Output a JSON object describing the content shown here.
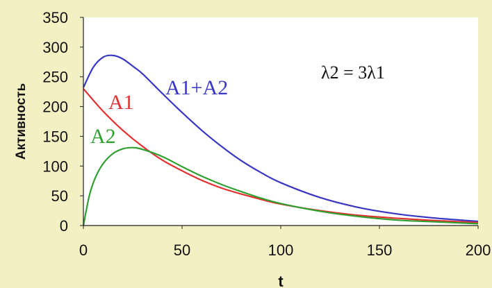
{
  "chart_data": {
    "type": "line",
    "xlabel": "t",
    "ylabel": "Активность",
    "xlim": [
      0,
      200
    ],
    "ylim": [
      0,
      350
    ],
    "x_ticks": [
      "0",
      "50",
      "100",
      "150",
      "200"
    ],
    "y_ticks": [
      "0",
      "50",
      "100",
      "150",
      "200",
      "250",
      "300",
      "350"
    ],
    "annotation": "λ2 = 3λ1",
    "grid": false,
    "series": [
      {
        "name": "A1+A2",
        "color": "#3a36c4",
        "x": [
          0,
          5,
          10,
          15,
          20,
          25,
          30,
          40,
          50,
          60,
          70,
          80,
          90,
          100,
          120,
          140,
          160,
          180,
          200
        ],
        "y": [
          232,
          266,
          283,
          286,
          280,
          268,
          255,
          222,
          190,
          160,
          133,
          109,
          89,
          72,
          47,
          30,
          19,
          12,
          7
        ]
      },
      {
        "name": "A1",
        "color": "#e43030",
        "x": [
          0,
          10,
          20,
          30,
          40,
          50,
          60,
          70,
          80,
          90,
          100,
          120,
          140,
          160,
          180,
          200
        ],
        "y": [
          230,
          192,
          160,
          133,
          110,
          92,
          76,
          63,
          53,
          44,
          36,
          25,
          17,
          12,
          8,
          5
        ]
      },
      {
        "name": "A2",
        "color": "#2fa02f",
        "x": [
          0,
          3,
          6,
          10,
          15,
          20,
          25,
          30,
          40,
          50,
          60,
          70,
          80,
          90,
          100,
          120,
          140,
          160,
          180,
          200
        ],
        "y": [
          0,
          50,
          80,
          104,
          121,
          129,
          131,
          128,
          116,
          99,
          83,
          69,
          57,
          46,
          37,
          24,
          15,
          9,
          6,
          3
        ]
      }
    ]
  }
}
